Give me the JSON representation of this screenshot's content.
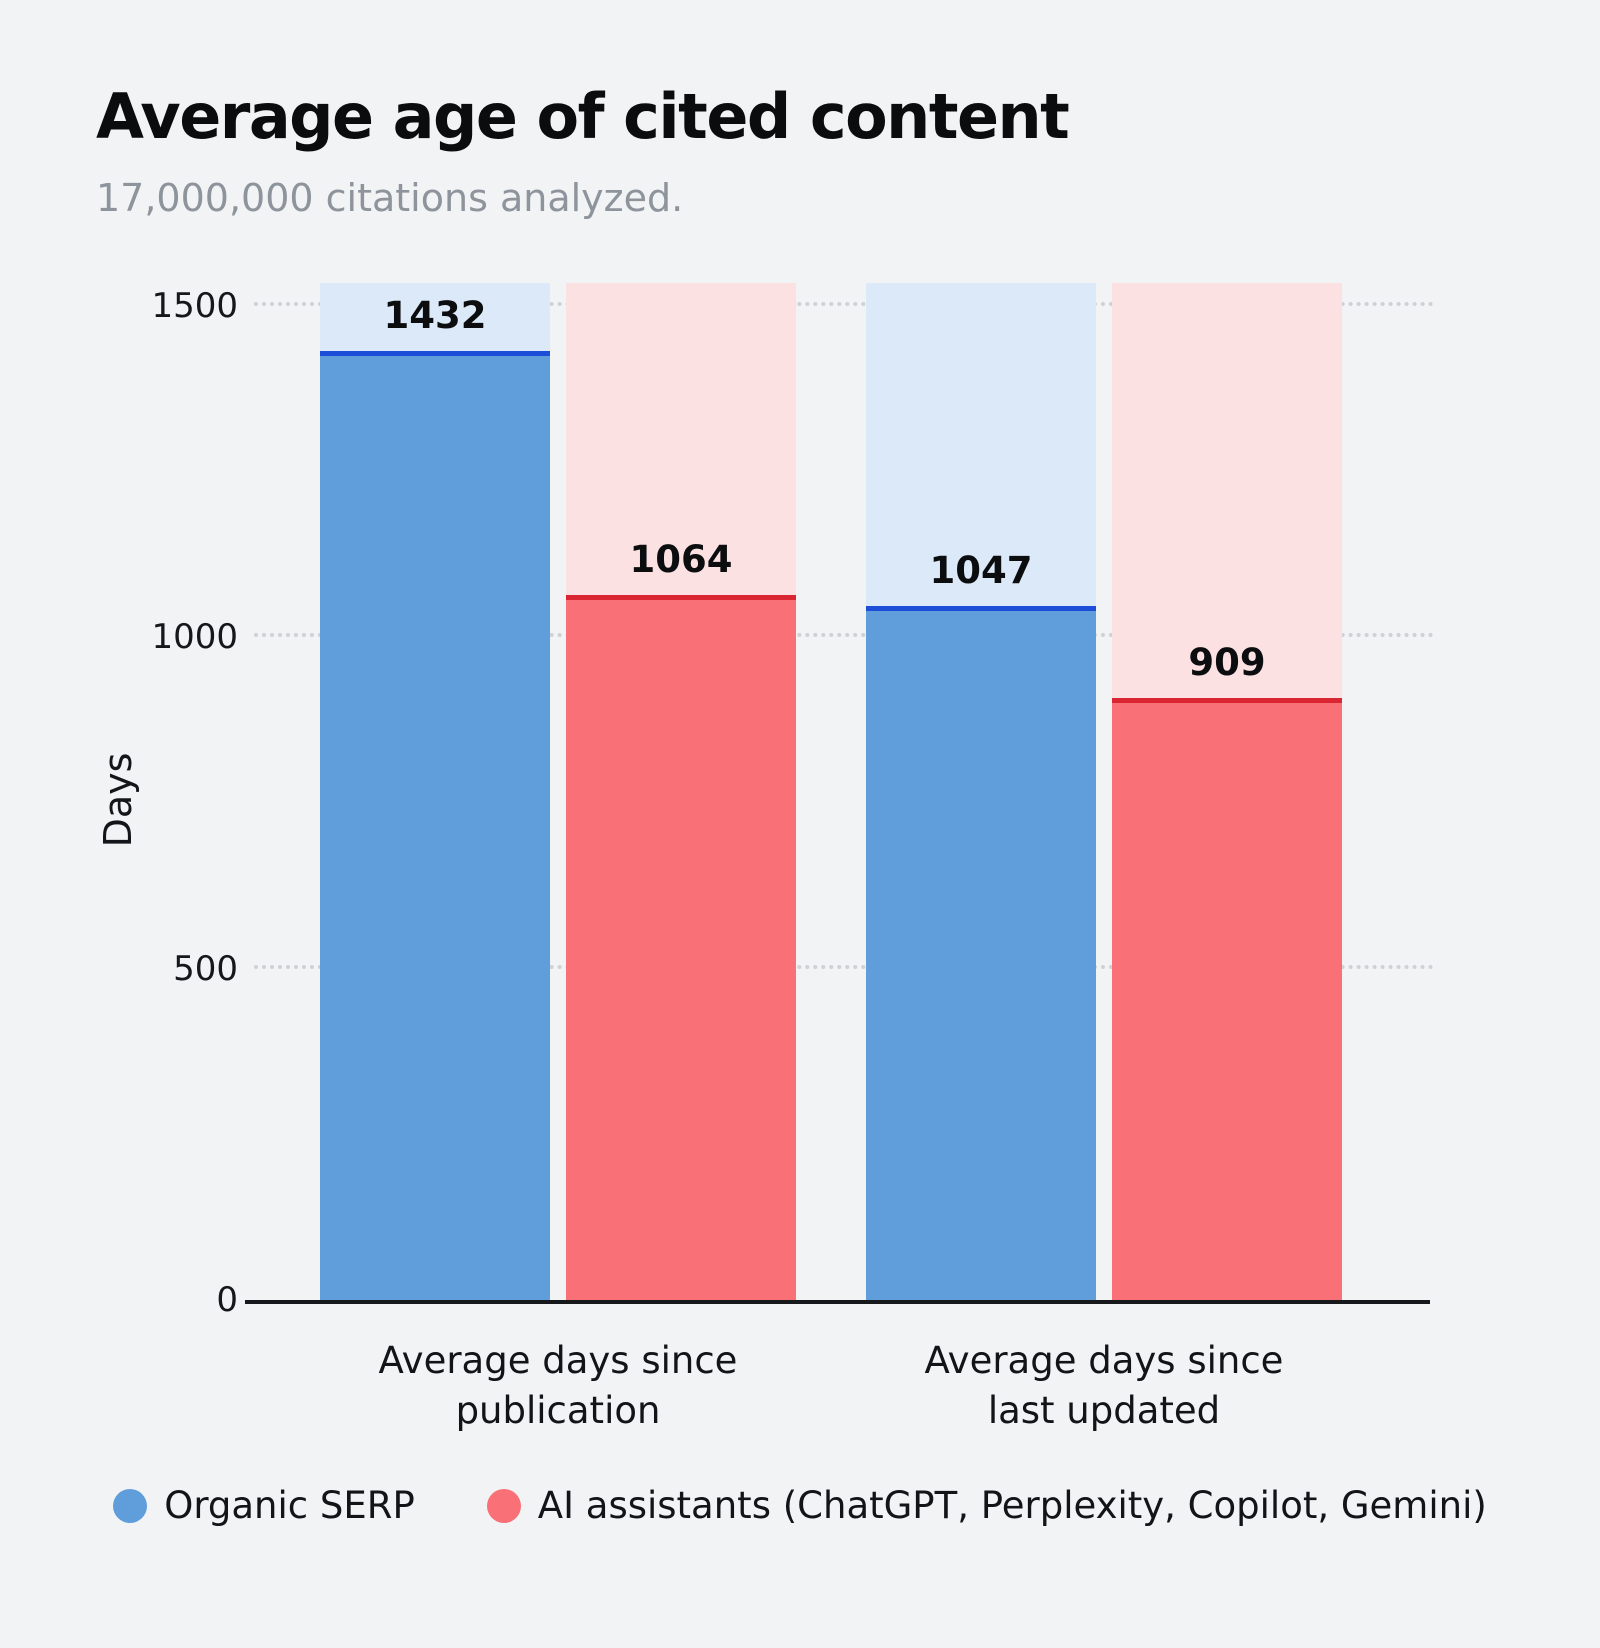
{
  "header": {
    "title": "Average age of cited content",
    "subtitle": "17,000,000 citations analyzed."
  },
  "chart_data": {
    "type": "bar",
    "title": "Average age of cited content",
    "subtitle": "17,000,000 citations analyzed.",
    "xlabel": "",
    "ylabel": "Days",
    "ylim": [
      0,
      1500
    ],
    "track_max_days": 1535,
    "yticks": [
      0,
      500,
      1000,
      1500
    ],
    "grid": "dotted-horizontal",
    "legend_position": "bottom",
    "categories": [
      "Average days since\npublication",
      "Average days since\nlast updated"
    ],
    "series": [
      {
        "name": "Organic SERP",
        "color": "#609ddb",
        "track_color": "#dce9f8",
        "line_color": "#1d4ed8",
        "values": [
          1432,
          1047
        ]
      },
      {
        "name": "AI assistants (ChatGPT, Perplexity, Copilot, Gemini)",
        "color": "#f97176",
        "track_color": "#fce1e3",
        "line_color": "#d92632",
        "values": [
          1064,
          909
        ]
      }
    ]
  }
}
